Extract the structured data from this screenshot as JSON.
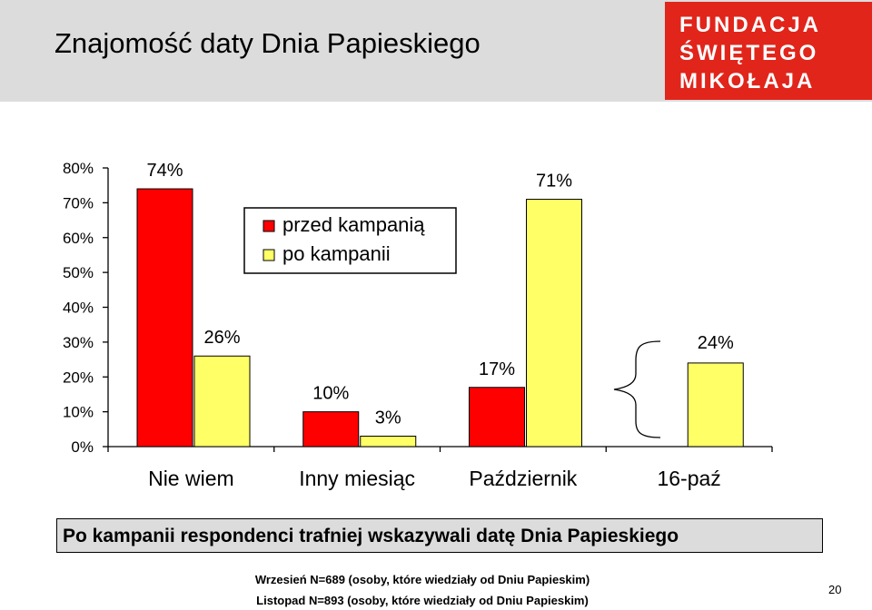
{
  "header": {
    "title": "Znajomość daty Dnia Papieskiego",
    "logo_lines": [
      "FUNDACJA",
      "ŚWIĘTEGO",
      "MIKOŁAJA"
    ]
  },
  "chart_data": {
    "type": "bar",
    "categories": [
      "Nie wiem",
      "Inny miesiąc",
      "Październik",
      "16-paź"
    ],
    "series": [
      {
        "name": "przed kampanią",
        "color": "#ff0000",
        "values": [
          74,
          10,
          17,
          null
        ]
      },
      {
        "name": "po kampanii",
        "color": "#ffff66",
        "values": [
          26,
          3,
          71,
          24
        ]
      }
    ],
    "data_labels": {
      "przed kampanią": [
        "74%",
        "10%",
        "17%",
        ""
      ],
      "po kampanii": [
        "26%",
        "3%",
        "71%",
        "24%"
      ]
    },
    "ylim": [
      0,
      80
    ],
    "yticks": [
      "0%",
      "10%",
      "20%",
      "30%",
      "40%",
      "50%",
      "60%",
      "70%",
      "80%"
    ],
    "legend_position": "top-center",
    "grid": false
  },
  "banner": "Po kampanii respondenci trafniej wskazywali datę Dnia Papieskiego",
  "notes": [
    "Wrzesień N=689 (osoby, które wiedziały od Dniu Papieskim)",
    "Listopad N=893 (osoby, które wiedziały od Dniu Papieskim)"
  ],
  "page_number": "20"
}
